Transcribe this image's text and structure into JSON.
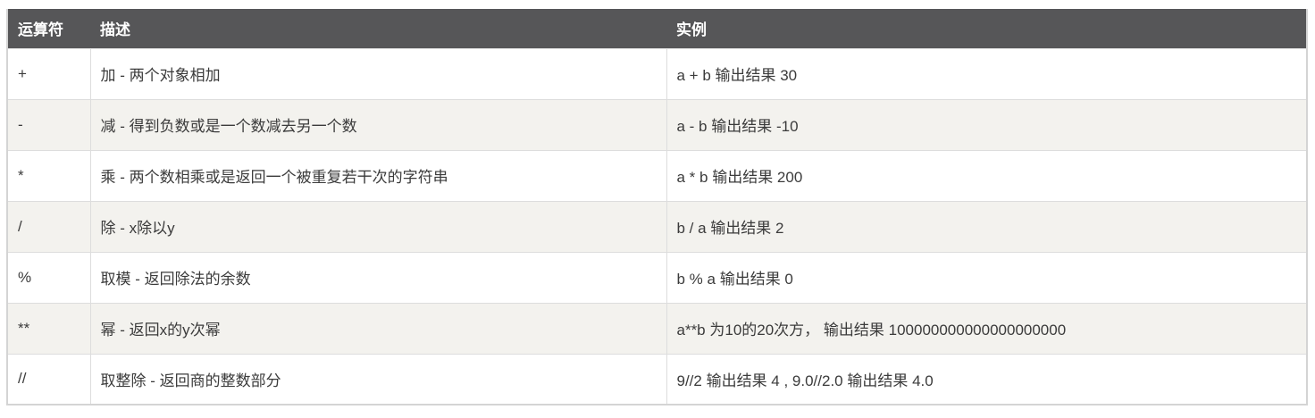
{
  "table": {
    "columns": [
      {
        "key": "operator",
        "label": "运算符"
      },
      {
        "key": "description",
        "label": "描述"
      },
      {
        "key": "example",
        "label": "实例"
      }
    ],
    "rows": [
      {
        "operator": "+",
        "description": "加 - 两个对象相加",
        "example": "a + b 输出结果 30"
      },
      {
        "operator": "-",
        "description": "减 - 得到负数或是一个数减去另一个数",
        "example": "a - b 输出结果 -10"
      },
      {
        "operator": "*",
        "description": "乘 - 两个数相乘或是返回一个被重复若干次的字符串",
        "example": "a * b 输出结果 200"
      },
      {
        "operator": "/",
        "description": "除 - x除以y",
        "example": "b / a 输出结果 2"
      },
      {
        "operator": "%",
        "description": "取模 - 返回除法的余数",
        "example": "b % a 输出结果 0"
      },
      {
        "operator": "**",
        "description": "幂 - 返回x的y次幂",
        "example": "a**b 为10的20次方， 输出结果 100000000000000000000"
      },
      {
        "operator": "//",
        "description": "取整除 - 返回商的整数部分",
        "example": "9//2 输出结果 4 , 9.0//2.0 输出结果 4.0"
      }
    ]
  },
  "colors": {
    "header_bg": "#565658",
    "header_text": "#ffffff",
    "row_bg": "#ffffff",
    "row_alt_bg": "#f3f2ee",
    "border": "#dddddd",
    "outer_border": "#d4d4d4",
    "body_text": "#3b3b3b"
  }
}
